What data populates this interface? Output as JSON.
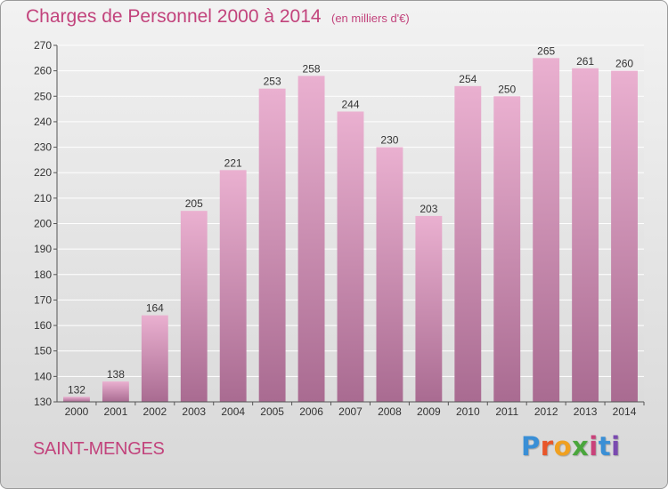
{
  "title": "Charges de Personnel 2000 à 2014",
  "subtitle": "(en milliers d'€)",
  "place": "SAINT-MENGES",
  "logo": {
    "letters": [
      "P",
      "r",
      "o",
      "x",
      "i",
      "t",
      "i"
    ],
    "colors": [
      "#3a8fd6",
      "#e8562a",
      "#f0a020",
      "#4aa63c",
      "#c9427a",
      "#3a8fd6",
      "#7a4ab0"
    ]
  },
  "colors": {
    "accent": "#c2437c",
    "bar_top": "#eab0d0",
    "bar_bottom": "#a96b91",
    "axis": "#555555"
  },
  "chart_data": {
    "type": "bar",
    "categories": [
      "2000",
      "2001",
      "2002",
      "2003",
      "2004",
      "2005",
      "2006",
      "2007",
      "2008",
      "2009",
      "2010",
      "2011",
      "2012",
      "2013",
      "2014"
    ],
    "values": [
      132,
      138,
      164,
      205,
      221,
      253,
      258,
      244,
      230,
      203,
      254,
      250,
      265,
      261,
      260
    ],
    "ylim": [
      130,
      270
    ],
    "yticks": [
      130,
      140,
      150,
      160,
      170,
      180,
      190,
      200,
      210,
      220,
      230,
      240,
      250,
      260,
      270
    ],
    "grid": true,
    "xlabel": "",
    "ylabel": ""
  }
}
